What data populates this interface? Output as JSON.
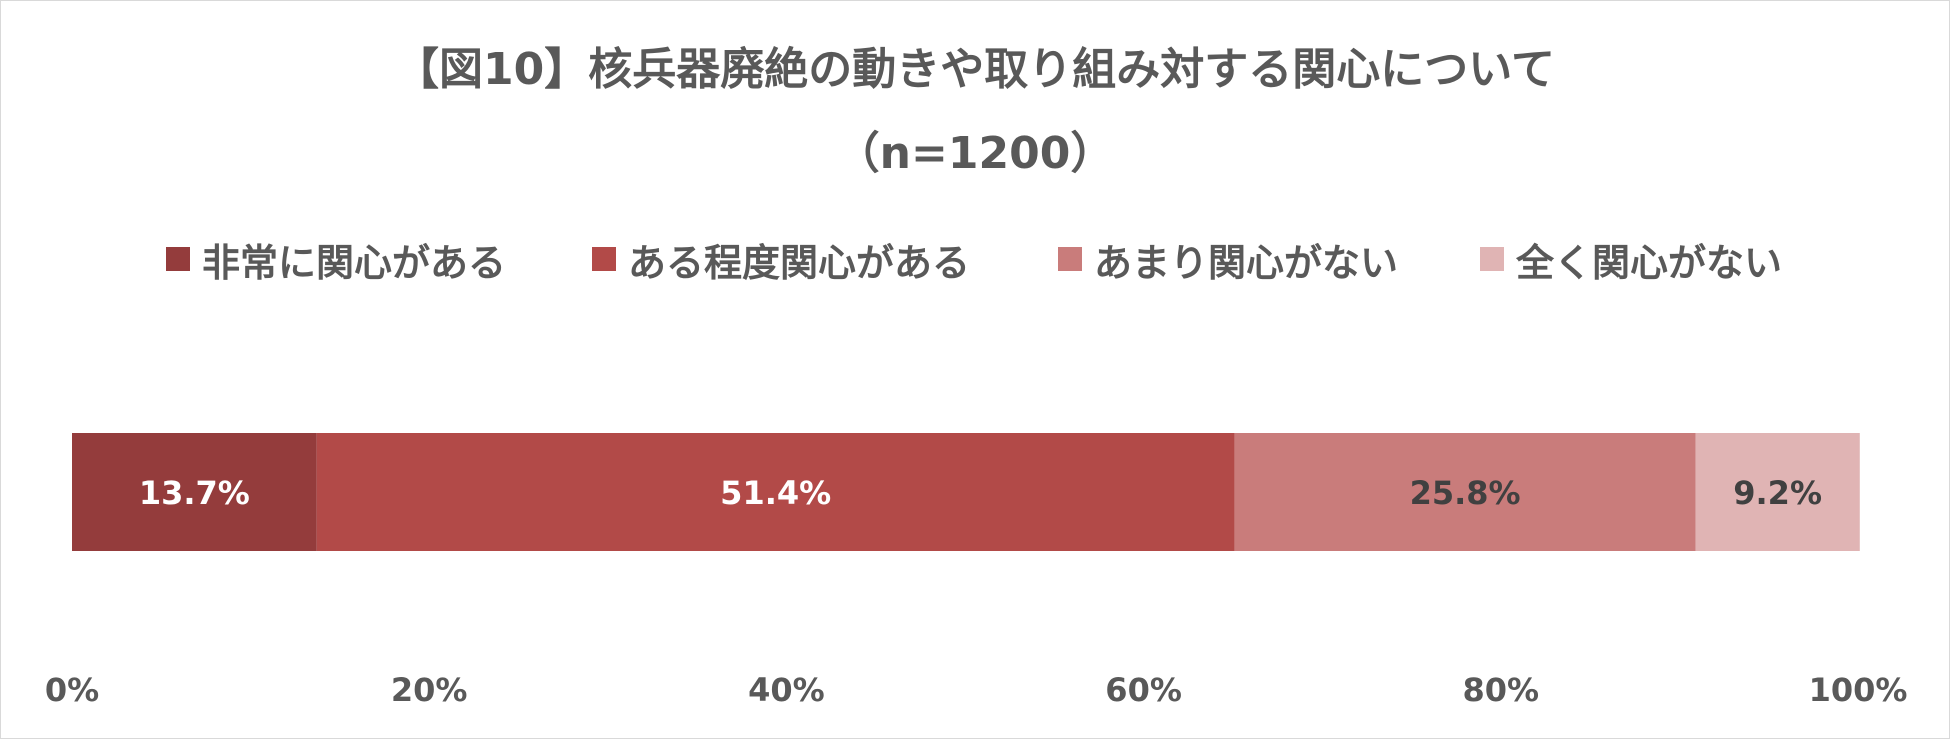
{
  "chart_data": {
    "type": "bar",
    "orientation": "horizontal-stacked-100",
    "title": "【図10】核兵器廃絶の動きや取り組み対する関心について",
    "subtitle": "（n=1200）",
    "categories": [
      ""
    ],
    "series": [
      {
        "name": "非常に関心がある",
        "values": [
          13.7
        ],
        "label": "13.7%",
        "color": "#943c3c",
        "label_color": "#ffffff"
      },
      {
        "name": "ある程度関心がある",
        "values": [
          51.4
        ],
        "label": "51.4%",
        "color": "#b24a48",
        "label_color": "#ffffff"
      },
      {
        "name": "あまり関心がない",
        "values": [
          25.8
        ],
        "label": "25.8%",
        "color": "#c97c7b",
        "label_color": "#404040"
      },
      {
        "name": "全く関心がない",
        "values": [
          9.2
        ],
        "label": "9.2%",
        "color": "#e0b4b4",
        "label_color": "#404040"
      }
    ],
    "xlim": [
      0,
      100
    ],
    "x_ticks": [
      0,
      20,
      40,
      60,
      80,
      100
    ],
    "x_tick_labels": [
      "0%",
      "20%",
      "40%",
      "60%",
      "80%",
      "100%"
    ],
    "legend_position": "top",
    "grid": false
  }
}
